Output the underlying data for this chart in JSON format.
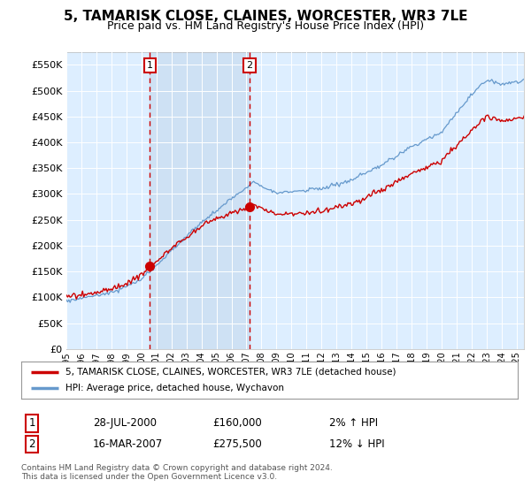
{
  "title": "5, TAMARISK CLOSE, CLAINES, WORCESTER, WR3 7LE",
  "subtitle": "Price paid vs. HM Land Registry's House Price Index (HPI)",
  "title_fontsize": 11,
  "subtitle_fontsize": 9,
  "ylabel_ticks": [
    "£0",
    "£50K",
    "£100K",
    "£150K",
    "£200K",
    "£250K",
    "£300K",
    "£350K",
    "£400K",
    "£450K",
    "£500K",
    "£550K"
  ],
  "ytick_values": [
    0,
    50000,
    100000,
    150000,
    200000,
    250000,
    300000,
    350000,
    400000,
    450000,
    500000,
    550000
  ],
  "ylim": [
    0,
    575000
  ],
  "xlim_start": 1995.0,
  "xlim_end": 2025.5,
  "plot_bg_color": "#ddeeff",
  "grid_color": "#ffffff",
  "transaction1_date": 2000.57,
  "transaction1_price": 160000,
  "transaction1_label": "1",
  "transaction2_date": 2007.21,
  "transaction2_price": 275500,
  "transaction2_label": "2",
  "vline_color": "#cc0000",
  "marker_color": "#cc0000",
  "hpi_line_color": "#6699cc",
  "price_line_color": "#cc0000",
  "shade_color": "#c8dcf0",
  "legend1_label": "5, TAMARISK CLOSE, CLAINES, WORCESTER, WR3 7LE (detached house)",
  "legend2_label": "HPI: Average price, detached house, Wychavon",
  "table_row1": [
    "1",
    "28-JUL-2000",
    "£160,000",
    "2% ↑ HPI"
  ],
  "table_row2": [
    "2",
    "16-MAR-2007",
    "£275,500",
    "12% ↓ HPI"
  ],
  "footer": "Contains HM Land Registry data © Crown copyright and database right 2024.\nThis data is licensed under the Open Government Licence v3.0.",
  "xtick_years": [
    1995,
    1996,
    1997,
    1998,
    1999,
    2000,
    2001,
    2002,
    2003,
    2004,
    2005,
    2006,
    2007,
    2008,
    2009,
    2010,
    2011,
    2012,
    2013,
    2014,
    2015,
    2016,
    2017,
    2018,
    2019,
    2020,
    2021,
    2022,
    2023,
    2024,
    2025
  ]
}
